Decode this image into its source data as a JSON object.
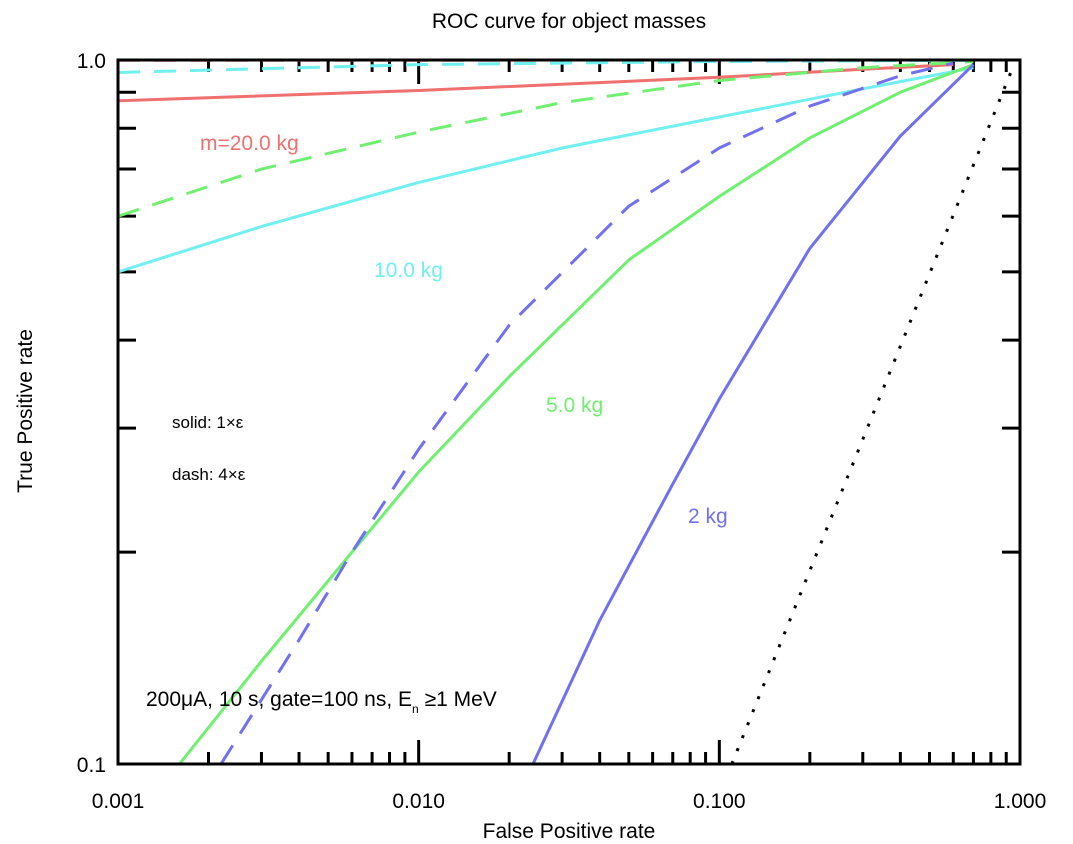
{
  "chart_data": {
    "type": "line",
    "title": "ROC curve for object masses",
    "xlabel": "False Positive rate",
    "ylabel": "True Positive rate",
    "x_scale": "log",
    "y_scale": "log",
    "xlim": [
      0.001,
      1.0
    ],
    "ylim": [
      0.1,
      1.0
    ],
    "x_tick_labels": [
      "0.001",
      "0.010",
      "0.100",
      "1.000"
    ],
    "y_tick_labels": [
      "0.1",
      "1.0"
    ],
    "grid": false,
    "series": [
      {
        "name": "m=20.0 kg",
        "style": "solid",
        "color": "#f07070",
        "x": [
          0.001,
          0.01,
          0.1,
          0.3,
          0.6
        ],
        "y": [
          0.875,
          0.905,
          0.945,
          0.97,
          0.985
        ]
      },
      {
        "style": "dashed",
        "color": "#f07070",
        "x": [
          0.001,
          0.01,
          0.1,
          0.3,
          0.6
        ],
        "y": [
          0.999,
          0.999,
          0.999,
          0.999,
          0.999
        ]
      },
      {
        "name": "10.0 kg",
        "style": "solid",
        "color": "#70f0f0",
        "x": [
          0.001,
          0.003,
          0.01,
          0.03,
          0.1,
          0.3,
          0.7
        ],
        "y": [
          0.5,
          0.58,
          0.67,
          0.75,
          0.83,
          0.91,
          0.975
        ]
      },
      {
        "style": "dashed",
        "color": "#70f0f0",
        "x": [
          0.001,
          0.01,
          0.1,
          0.7
        ],
        "y": [
          0.96,
          0.985,
          0.995,
          0.999
        ]
      },
      {
        "name": "5.0 kg",
        "style": "solid",
        "color": "#70f070",
        "x": [
          0.0016,
          0.003,
          0.006,
          0.01,
          0.02,
          0.05,
          0.1,
          0.2,
          0.4,
          0.7
        ],
        "y": [
          0.1,
          0.14,
          0.2,
          0.26,
          0.355,
          0.52,
          0.64,
          0.775,
          0.9,
          0.985
        ]
      },
      {
        "style": "dashed",
        "color": "#70f070",
        "x": [
          0.001,
          0.003,
          0.01,
          0.03,
          0.1,
          0.3,
          0.7
        ],
        "y": [
          0.6,
          0.7,
          0.79,
          0.87,
          0.935,
          0.975,
          0.995
        ]
      },
      {
        "name": "2 kg",
        "style": "solid",
        "color": "#7070f0",
        "x": [
          0.024,
          0.04,
          0.07,
          0.1,
          0.2,
          0.4,
          0.7
        ],
        "y": [
          0.1,
          0.16,
          0.25,
          0.33,
          0.54,
          0.78,
          0.985
        ]
      },
      {
        "style": "dashed",
        "color": "#7070f0",
        "x": [
          0.0022,
          0.004,
          0.006,
          0.01,
          0.02,
          0.05,
          0.1,
          0.2,
          0.4,
          0.6
        ],
        "y": [
          0.1,
          0.15,
          0.2,
          0.28,
          0.42,
          0.62,
          0.75,
          0.86,
          0.95,
          0.99
        ]
      },
      {
        "style": "dotted",
        "color": "#000000",
        "x": [
          0.11,
          0.95
        ],
        "y": [
          0.1,
          0.98
        ]
      }
    ]
  },
  "annotations": {
    "label_20": "m=20.0 kg",
    "label_10": "10.0 kg",
    "label_5": "5.0 kg",
    "label_2": "2 kg",
    "legend_solid": "solid: 1×ε",
    "legend_dash": "dash: 4×ε",
    "conditions_a": "200μA, 10 s, gate=100 ns, E",
    "conditions_sub": "n",
    "conditions_b": " ≥1 MeV"
  }
}
